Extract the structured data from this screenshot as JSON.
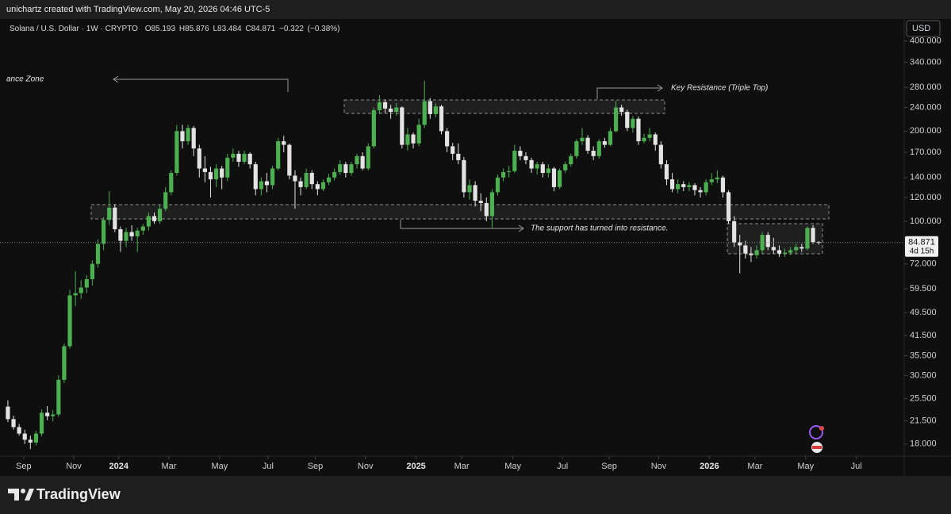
{
  "header": {
    "credit": "unichartz created with TradingView.com, May 20, 2026 04:46 UTC-5"
  },
  "chart_data": {
    "type": "candlestick",
    "symbol": "Solana / U.S. Dollar · 1W · CRYPTO",
    "ohlc_letters": [
      "O",
      "H",
      "L",
      "C"
    ],
    "change": {
      "value": -0.322,
      "label": "−0.322"
    },
    "change_pct": {
      "value": -0.38,
      "label": "(−0.38%)"
    },
    "currency": "USD",
    "countdown": "4d 15h",
    "log_scale": true,
    "grid": false,
    "up_color": "#4caf50",
    "down_color": "#e3e3e3",
    "xlim": [
      -1.4,
      159.2
    ],
    "xticks": [
      {
        "value": 2.8,
        "label": "Sep"
      },
      {
        "value": 11.7,
        "label": "Nov"
      },
      {
        "value": 19.7,
        "label": "2024"
      },
      {
        "value": 28.6,
        "label": "Mar"
      },
      {
        "value": 37.6,
        "label": "May"
      },
      {
        "value": 46.2,
        "label": "Jul"
      },
      {
        "value": 54.6,
        "label": "Sep"
      },
      {
        "value": 63.5,
        "label": "Nov"
      },
      {
        "value": 72.5,
        "label": "2025"
      },
      {
        "value": 80.6,
        "label": "Mar"
      },
      {
        "value": 89.7,
        "label": "May"
      },
      {
        "value": 98.5,
        "label": "Jul"
      },
      {
        "value": 106.8,
        "label": "Sep"
      },
      {
        "value": 115.6,
        "label": "Nov"
      },
      {
        "value": 124.6,
        "label": "2026"
      },
      {
        "value": 132.7,
        "label": "Mar"
      },
      {
        "value": 141.7,
        "label": "May"
      },
      {
        "value": 150.7,
        "label": "Jul"
      }
    ],
    "ylim": [
      16.4,
      474
    ],
    "yticks": [
      {
        "value": 18,
        "label": "18.000"
      },
      {
        "value": 21.5,
        "label": "21.500"
      },
      {
        "value": 25.5,
        "label": "25.500"
      },
      {
        "value": 30.5,
        "label": "30.500"
      },
      {
        "value": 35.5,
        "label": "35.500"
      },
      {
        "value": 41.5,
        "label": "41.500"
      },
      {
        "value": 49.5,
        "label": "49.500"
      },
      {
        "value": 59.5,
        "label": "59.500"
      },
      {
        "value": 72,
        "label": "72.000"
      },
      {
        "value": 100,
        "label": "100.000"
      },
      {
        "value": 120,
        "label": "120.000"
      },
      {
        "value": 140,
        "label": "140.000"
      },
      {
        "value": 170,
        "label": "170.000"
      },
      {
        "value": 200,
        "label": "200.000"
      },
      {
        "value": 240,
        "label": "240.000"
      },
      {
        "value": 280,
        "label": "280.000"
      },
      {
        "value": 340,
        "label": "340.000"
      },
      {
        "value": 400,
        "label": "400.000"
      }
    ],
    "annotations": [
      "ance Zone",
      "Key Resistance  (Triple Top)",
      "The support has turned into resistance."
    ],
    "series": [
      {
        "ohlc": [
          [
            24,
            25.2,
            21.3,
            21.8
          ],
          [
            21.8,
            22.4,
            20.1,
            20.5
          ],
          [
            20.5,
            21,
            19.2,
            19.5
          ],
          [
            19.5,
            20.1,
            18,
            18.6
          ],
          [
            18.6,
            19.2,
            17.3,
            18.2
          ],
          [
            18.2,
            19.9,
            17.8,
            19.5
          ],
          [
            19.5,
            23.5,
            19.1,
            22.9
          ],
          [
            22.9,
            24.1,
            21.6,
            22.3
          ],
          [
            22.3,
            23.4,
            21.4,
            22.6
          ],
          [
            22.6,
            30.5,
            22.2,
            29.5
          ],
          [
            29.5,
            39,
            28.8,
            38.2
          ],
          [
            38.2,
            59,
            37.5,
            56.5
          ],
          [
            56.5,
            68,
            52,
            57.5
          ],
          [
            57.5,
            63.5,
            55,
            60
          ],
          [
            60,
            66,
            57.5,
            64
          ],
          [
            64,
            74,
            61,
            72
          ],
          [
            72,
            87,
            70,
            84
          ],
          [
            84,
            103,
            80,
            101
          ],
          [
            101,
            126,
            97,
            111
          ],
          [
            111,
            114,
            92,
            94
          ],
          [
            94,
            96,
            79,
            86
          ],
          [
            86,
            95,
            82,
            92
          ],
          [
            92,
            97,
            86,
            89
          ],
          [
            89,
            95,
            79,
            93
          ],
          [
            93,
            98,
            90,
            96
          ],
          [
            96,
            107,
            93,
            104
          ],
          [
            104,
            107,
            98,
            100
          ],
          [
            100,
            113,
            98,
            110
          ],
          [
            110,
            130,
            108,
            125
          ],
          [
            125,
            148,
            122,
            145
          ],
          [
            145,
            210,
            142,
            200
          ],
          [
            200,
            210,
            175,
            185
          ],
          [
            185,
            210,
            180,
            205
          ],
          [
            205,
            208,
            165,
            175
          ],
          [
            175,
            180,
            140,
            150
          ],
          [
            150,
            165,
            135,
            146
          ],
          [
            146,
            152,
            120,
            138
          ],
          [
            138,
            155,
            130,
            150
          ],
          [
            150,
            153,
            128,
            140
          ],
          [
            140,
            168,
            136,
            163
          ],
          [
            163,
            175,
            158,
            168
          ],
          [
            168,
            172,
            152,
            158
          ],
          [
            158,
            172,
            155,
            168
          ],
          [
            168,
            170,
            150,
            155
          ],
          [
            155,
            158,
            122,
            128
          ],
          [
            128,
            140,
            122,
            136
          ],
          [
            136,
            145,
            125,
            132
          ],
          [
            132,
            153,
            128,
            150
          ],
          [
            150,
            190,
            148,
            185
          ],
          [
            185,
            193,
            170,
            180
          ],
          [
            180,
            182,
            138,
            142
          ],
          [
            142,
            148,
            110,
            136
          ],
          [
            136,
            140,
            122,
            130
          ],
          [
            130,
            150,
            128,
            145
          ],
          [
            145,
            148,
            128,
            133
          ],
          [
            133,
            136,
            122,
            128
          ],
          [
            128,
            138,
            126,
            135
          ],
          [
            135,
            144,
            132,
            140
          ],
          [
            140,
            150,
            137,
            146
          ],
          [
            146,
            160,
            143,
            155
          ],
          [
            155,
            158,
            140,
            145
          ],
          [
            145,
            158,
            142,
            155
          ],
          [
            155,
            168,
            150,
            165
          ],
          [
            165,
            170,
            148,
            150
          ],
          [
            150,
            182,
            148,
            178
          ],
          [
            178,
            240,
            175,
            235
          ],
          [
            235,
            264,
            228,
            250
          ],
          [
            250,
            255,
            230,
            238
          ],
          [
            238,
            245,
            220,
            232
          ],
          [
            232,
            248,
            225,
            240
          ],
          [
            240,
            242,
            175,
            180
          ],
          [
            180,
            205,
            172,
            195
          ],
          [
            195,
            198,
            175,
            182
          ],
          [
            182,
            220,
            178,
            210
          ],
          [
            210,
            295,
            205,
            252
          ],
          [
            252,
            258,
            220,
            228
          ],
          [
            228,
            248,
            222,
            242
          ],
          [
            242,
            245,
            195,
            200
          ],
          [
            200,
            205,
            170,
            178
          ],
          [
            178,
            183,
            160,
            168
          ],
          [
            168,
            182,
            155,
            160
          ],
          [
            160,
            164,
            120,
            125
          ],
          [
            125,
            138,
            118,
            132
          ],
          [
            132,
            136,
            112,
            117
          ],
          [
            117,
            124,
            108,
            115
          ],
          [
            115,
            120,
            100,
            104
          ],
          [
            104,
            128,
            95,
            125
          ],
          [
            125,
            143,
            122,
            140
          ],
          [
            140,
            150,
            136,
            146
          ],
          [
            146,
            153,
            140,
            147
          ],
          [
            147,
            180,
            145,
            172
          ],
          [
            172,
            178,
            160,
            165
          ],
          [
            165,
            170,
            155,
            160
          ],
          [
            160,
            163,
            145,
            150
          ],
          [
            150,
            158,
            143,
            155
          ],
          [
            155,
            158,
            140,
            145
          ],
          [
            145,
            155,
            140,
            150
          ],
          [
            150,
            152,
            126,
            130
          ],
          [
            130,
            150,
            128,
            148
          ],
          [
            148,
            158,
            145,
            155
          ],
          [
            155,
            168,
            152,
            165
          ],
          [
            165,
            188,
            162,
            185
          ],
          [
            185,
            205,
            180,
            190
          ],
          [
            190,
            194,
            168,
            172
          ],
          [
            172,
            178,
            160,
            165
          ],
          [
            165,
            188,
            162,
            185
          ],
          [
            185,
            190,
            176,
            180
          ],
          [
            180,
            205,
            178,
            200
          ],
          [
            200,
            252,
            198,
            240
          ],
          [
            240,
            245,
            225,
            232
          ],
          [
            232,
            236,
            200,
            205
          ],
          [
            205,
            225,
            198,
            220
          ],
          [
            220,
            224,
            180,
            185
          ],
          [
            185,
            196,
            182,
            190
          ],
          [
            190,
            205,
            185,
            195
          ],
          [
            195,
            198,
            172,
            180
          ],
          [
            180,
            185,
            150,
            155
          ],
          [
            155,
            160,
            132,
            138
          ],
          [
            138,
            145,
            125,
            128
          ],
          [
            128,
            138,
            124,
            133
          ],
          [
            133,
            136,
            126,
            130
          ],
          [
            130,
            135,
            126,
            132
          ],
          [
            132,
            134,
            122,
            127
          ],
          [
            127,
            130,
            120,
            125
          ],
          [
            125,
            138,
            122,
            135
          ],
          [
            135,
            145,
            132,
            138
          ],
          [
            138,
            148,
            134,
            140
          ],
          [
            140,
            142,
            120,
            125
          ],
          [
            125,
            127,
            98,
            100
          ],
          [
            100,
            104,
            82,
            85
          ],
          [
            85,
            90,
            67,
            83
          ],
          [
            83,
            86,
            75,
            78
          ],
          [
            78,
            82,
            73,
            77
          ],
          [
            77,
            83,
            75,
            80
          ],
          [
            80,
            92,
            78,
            90
          ],
          [
            90,
            92,
            80,
            82
          ],
          [
            82,
            88,
            78,
            80
          ],
          [
            80,
            83,
            76,
            78
          ],
          [
            78,
            81,
            76,
            78.5
          ],
          [
            78.5,
            82,
            77,
            80
          ],
          [
            80,
            84,
            78,
            82
          ],
          [
            82,
            84,
            79,
            81
          ],
          [
            81,
            96,
            80,
            95
          ],
          [
            95,
            97,
            84,
            85.193
          ],
          [
            85.193,
            85.876,
            83.484,
            84.871
          ]
        ]
      }
    ]
  },
  "footer": {
    "brand": "TradingView"
  }
}
